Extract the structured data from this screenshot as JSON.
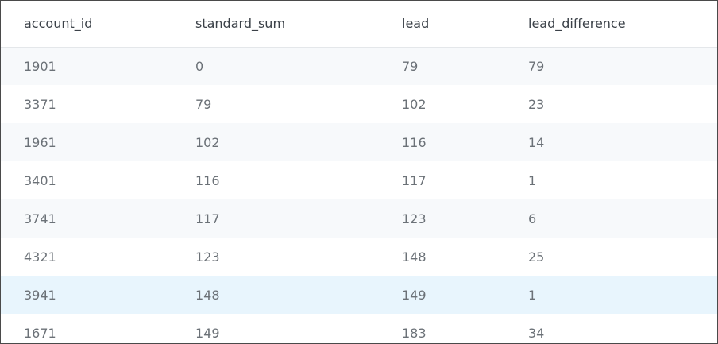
{
  "table": {
    "columns": [
      "account_id",
      "standard_sum",
      "lead",
      "lead_difference"
    ],
    "rows": [
      [
        "1901",
        "0",
        "79",
        "79"
      ],
      [
        "3371",
        "79",
        "102",
        "23"
      ],
      [
        "1961",
        "102",
        "116",
        "14"
      ],
      [
        "3401",
        "116",
        "117",
        "1"
      ],
      [
        "3741",
        "117",
        "123",
        "6"
      ],
      [
        "4321",
        "123",
        "148",
        "25"
      ],
      [
        "3941",
        "148",
        "149",
        "1"
      ],
      [
        "1671",
        "149",
        "183",
        "34"
      ]
    ],
    "highlighted_row": 6
  },
  "colors": {
    "header_text": "#3b4148",
    "cell_text": "#6b7177",
    "stripe": "#f7f9fb",
    "highlight": "#e8f5fd",
    "border": "#4a4a4a"
  }
}
